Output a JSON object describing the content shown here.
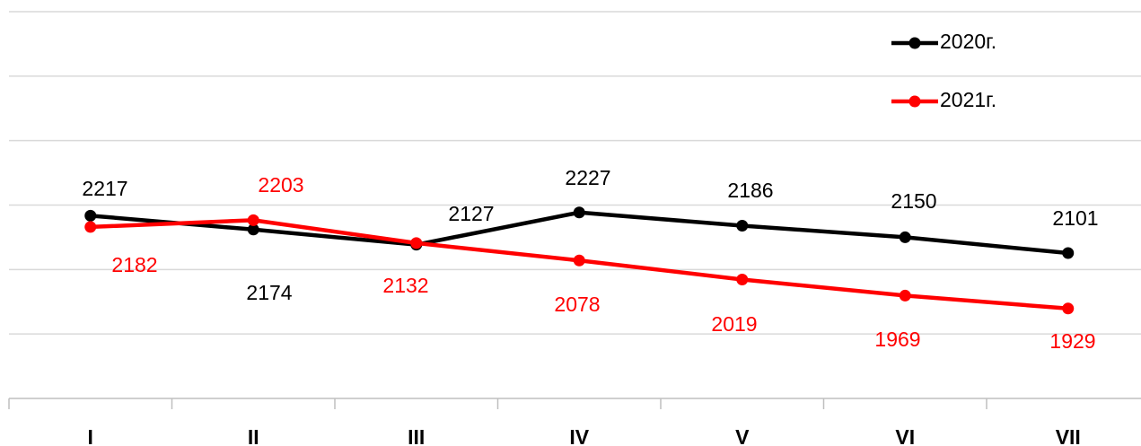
{
  "chart_data": {
    "type": "line",
    "categories": [
      "I",
      "II",
      "III",
      "IV",
      "V",
      "VI",
      "VII"
    ],
    "series": [
      {
        "name": "2020г.",
        "color": "#000000",
        "values": [
          2217,
          2174,
          2127,
          2227,
          2186,
          2150,
          2101
        ]
      },
      {
        "name": "2021г.",
        "color": "#ff0000",
        "values": [
          2182,
          2203,
          2132,
          2078,
          2019,
          1969,
          1929
        ]
      }
    ],
    "ylim": [
      1650,
      2850
    ],
    "yticks": [
      1650,
      1850,
      2050,
      2250,
      2450,
      2650,
      2850
    ],
    "grid": true,
    "legend": "top-right"
  }
}
